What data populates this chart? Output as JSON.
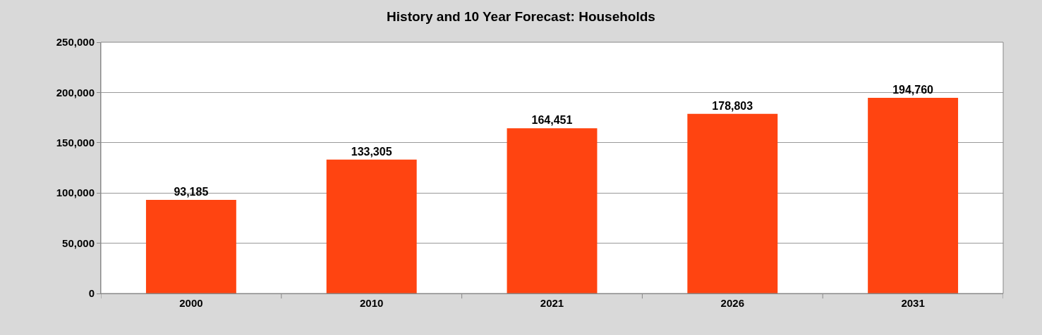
{
  "chart_data": {
    "type": "bar",
    "title": "History and 10 Year Forecast: Households",
    "categories": [
      "2000",
      "2010",
      "2021",
      "2026",
      "2031"
    ],
    "values": [
      93185,
      133305,
      164451,
      178803,
      194760
    ],
    "color": "#ff4411",
    "ylim": [
      0,
      250000
    ],
    "yticks": [
      0,
      {
        "value": 50000,
        "label": "50,000"
      },
      {
        "value": 100000,
        "label": "100,000"
      },
      {
        "value": 150000,
        "label": "150,000"
      },
      {
        "value": 200000,
        "label": "200,000"
      },
      {
        "value": 250000,
        "label": "250,000"
      }
    ],
    "value_labels": [
      "93,185",
      "133,305",
      "164,451",
      "178,803",
      "194,760"
    ],
    "grid": "y",
    "legend": false
  }
}
